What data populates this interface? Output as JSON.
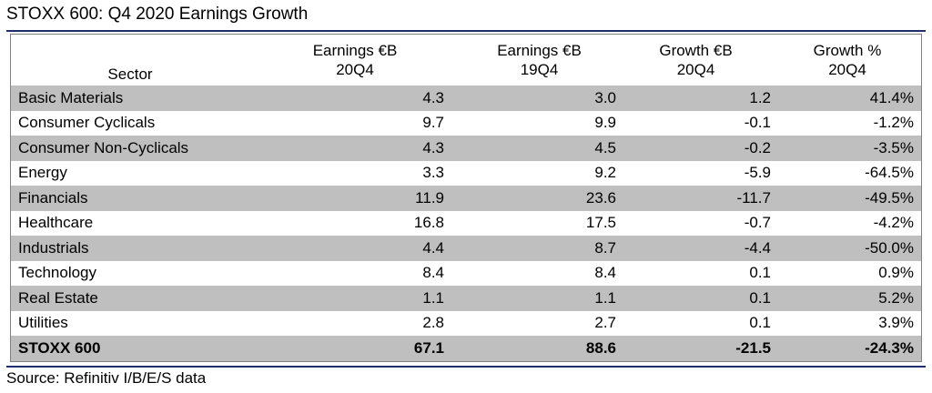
{
  "title": "STOXX 600: Q4 2020 Earnings Growth",
  "source": "Source: Refinitiv I/B/E/S data",
  "colors": {
    "rule": "#1f2f6e",
    "row_shade": "#bfbfbf",
    "frame": "#808080"
  },
  "chart_data": {
    "type": "table",
    "title": "STOXX 600: Q4 2020 Earnings Growth",
    "columns": [
      {
        "line1": "",
        "line2": "Sector"
      },
      {
        "line1": "Earnings €B",
        "line2": "20Q4"
      },
      {
        "line1": "Earnings €B",
        "line2": "19Q4"
      },
      {
        "line1": "Growth €B",
        "line2": "20Q4"
      },
      {
        "line1": "Growth %",
        "line2": "20Q4"
      }
    ],
    "rows": [
      {
        "sector": "Basic Materials",
        "earnings_20q4": "4.3",
        "earnings_19q4": "3.0",
        "growth_eur_b": "1.2",
        "growth_pct": "41.4%"
      },
      {
        "sector": "Consumer Cyclicals",
        "earnings_20q4": "9.7",
        "earnings_19q4": "9.9",
        "growth_eur_b": "-0.1",
        "growth_pct": "-1.2%"
      },
      {
        "sector": "Consumer Non-Cyclicals",
        "earnings_20q4": "4.3",
        "earnings_19q4": "4.5",
        "growth_eur_b": "-0.2",
        "growth_pct": "-3.5%"
      },
      {
        "sector": "Energy",
        "earnings_20q4": "3.3",
        "earnings_19q4": "9.2",
        "growth_eur_b": "-5.9",
        "growth_pct": "-64.5%"
      },
      {
        "sector": "Financials",
        "earnings_20q4": "11.9",
        "earnings_19q4": "23.6",
        "growth_eur_b": "-11.7",
        "growth_pct": "-49.5%"
      },
      {
        "sector": "Healthcare",
        "earnings_20q4": "16.8",
        "earnings_19q4": "17.5",
        "growth_eur_b": "-0.7",
        "growth_pct": "-4.2%"
      },
      {
        "sector": "Industrials",
        "earnings_20q4": "4.4",
        "earnings_19q4": "8.7",
        "growth_eur_b": "-4.4",
        "growth_pct": "-50.0%"
      },
      {
        "sector": "Technology",
        "earnings_20q4": "8.4",
        "earnings_19q4": "8.4",
        "growth_eur_b": "0.1",
        "growth_pct": "0.9%"
      },
      {
        "sector": "Real Estate",
        "earnings_20q4": "1.1",
        "earnings_19q4": "1.1",
        "growth_eur_b": "0.1",
        "growth_pct": "5.2%"
      },
      {
        "sector": "Utilities",
        "earnings_20q4": "2.8",
        "earnings_19q4": "2.7",
        "growth_eur_b": "0.1",
        "growth_pct": "3.9%"
      }
    ],
    "total": {
      "sector": "STOXX 600",
      "earnings_20q4": "67.1",
      "earnings_19q4": "88.6",
      "growth_eur_b": "-21.5",
      "growth_pct": "-24.3%"
    }
  }
}
